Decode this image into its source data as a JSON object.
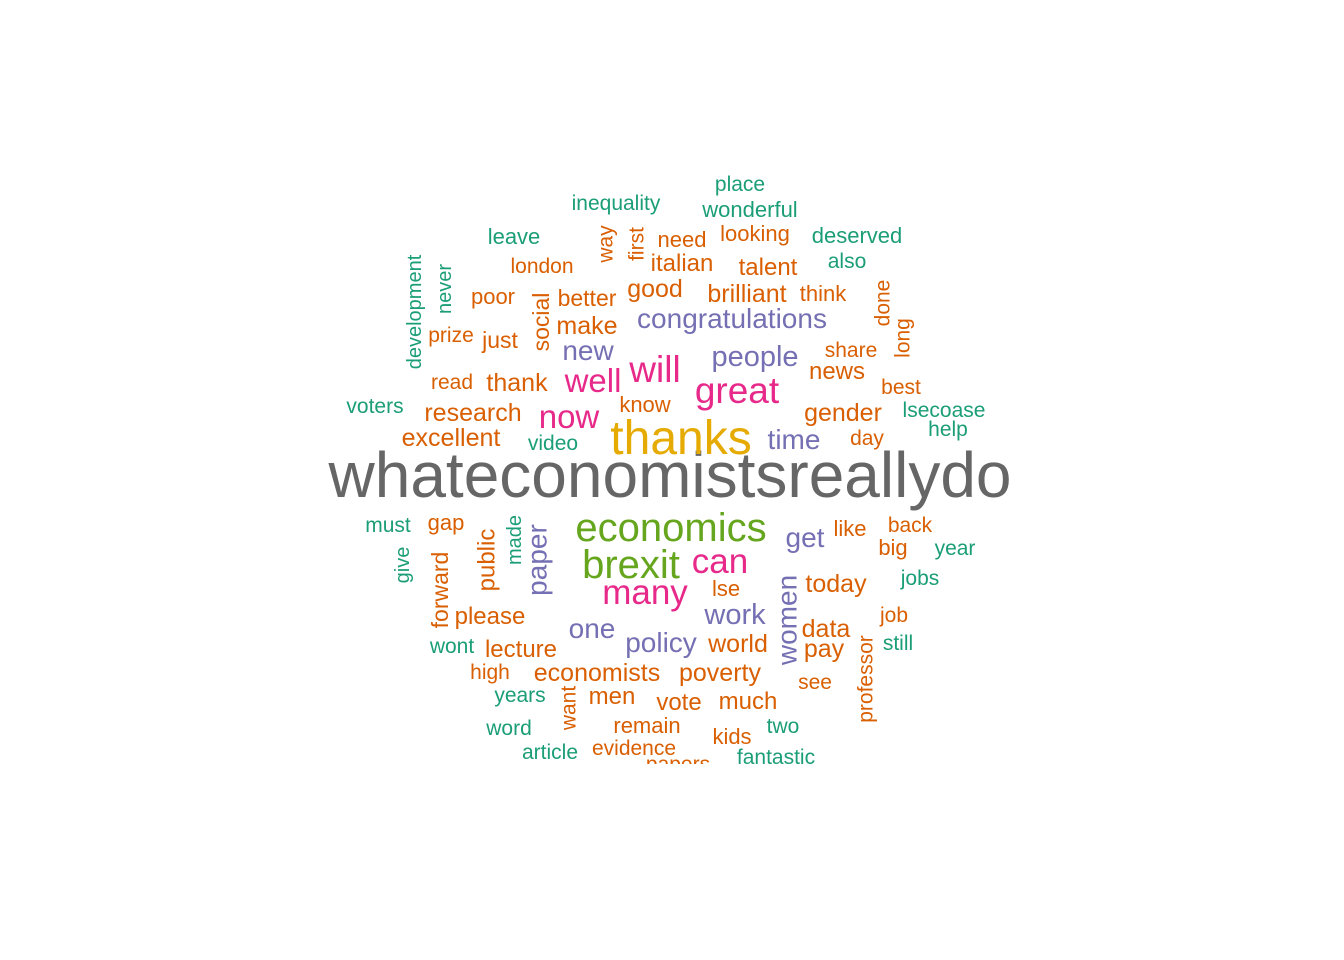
{
  "chart_data": {
    "type": "wordcloud",
    "palette": {
      "gray": "#666666",
      "mustard": "#E6AB02",
      "green": "#66A61E",
      "magenta": "#E7298A",
      "purple": "#7570B3",
      "orange": "#D95F02",
      "teal": "#1B9E77"
    },
    "words": [
      {
        "text": "whateconomistsreallydo",
        "rank": 1,
        "color": "gray"
      },
      {
        "text": "thanks",
        "rank": 2,
        "color": "mustard"
      },
      {
        "text": "economics",
        "rank": 3,
        "color": "green"
      },
      {
        "text": "brexit",
        "rank": 3,
        "color": "green"
      },
      {
        "text": "great",
        "rank": 4,
        "color": "magenta"
      },
      {
        "text": "will",
        "rank": 4,
        "color": "magenta"
      },
      {
        "text": "many",
        "rank": 4,
        "color": "magenta"
      },
      {
        "text": "can",
        "rank": 4,
        "color": "magenta"
      },
      {
        "text": "now",
        "rank": 4,
        "color": "magenta"
      },
      {
        "text": "well",
        "rank": 4,
        "color": "magenta"
      },
      {
        "text": "congratulations",
        "rank": 5,
        "color": "purple"
      },
      {
        "text": "people",
        "rank": 5,
        "color": "purple"
      },
      {
        "text": "new",
        "rank": 5,
        "color": "purple"
      },
      {
        "text": "time",
        "rank": 5,
        "color": "purple"
      },
      {
        "text": "get",
        "rank": 5,
        "color": "purple"
      },
      {
        "text": "paper",
        "rank": 5,
        "color": "purple"
      },
      {
        "text": "work",
        "rank": 5,
        "color": "purple"
      },
      {
        "text": "women",
        "rank": 5,
        "color": "purple"
      },
      {
        "text": "one",
        "rank": 5,
        "color": "purple"
      },
      {
        "text": "policy",
        "rank": 5,
        "color": "purple"
      },
      {
        "text": "gender",
        "rank": 6,
        "color": "orange"
      },
      {
        "text": "today",
        "rank": 6,
        "color": "orange"
      },
      {
        "text": "economists",
        "rank": 6,
        "color": "orange"
      },
      {
        "text": "thank",
        "rank": 6,
        "color": "orange"
      },
      {
        "text": "research",
        "rank": 6,
        "color": "orange"
      },
      {
        "text": "excellent",
        "rank": 6,
        "color": "orange"
      },
      {
        "text": "make",
        "rank": 6,
        "color": "orange"
      },
      {
        "text": "good",
        "rank": 6,
        "color": "orange"
      },
      {
        "text": "brilliant",
        "rank": 6,
        "color": "orange"
      },
      {
        "text": "better",
        "rank": 6,
        "color": "orange"
      },
      {
        "text": "social",
        "rank": 6,
        "color": "orange"
      },
      {
        "text": "italian",
        "rank": 6,
        "color": "orange"
      },
      {
        "text": "talent",
        "rank": 6,
        "color": "orange"
      },
      {
        "text": "news",
        "rank": 6,
        "color": "orange"
      },
      {
        "text": "world",
        "rank": 6,
        "color": "orange"
      },
      {
        "text": "poverty",
        "rank": 6,
        "color": "orange"
      },
      {
        "text": "data",
        "rank": 6,
        "color": "orange"
      },
      {
        "text": "pay",
        "rank": 6,
        "color": "orange"
      },
      {
        "text": "lecture",
        "rank": 6,
        "color": "orange"
      },
      {
        "text": "please",
        "rank": 6,
        "color": "orange"
      },
      {
        "text": "public",
        "rank": 6,
        "color": "orange"
      },
      {
        "text": "forward",
        "rank": 6,
        "color": "orange"
      },
      {
        "text": "much",
        "rank": 6,
        "color": "orange"
      },
      {
        "text": "vote",
        "rank": 6,
        "color": "orange"
      },
      {
        "text": "men",
        "rank": 6,
        "color": "orange"
      },
      {
        "text": "just",
        "rank": 6,
        "color": "orange"
      },
      {
        "text": "london",
        "rank": 7,
        "color": "orange"
      },
      {
        "text": "poor",
        "rank": 7,
        "color": "orange"
      },
      {
        "text": "need",
        "rank": 7,
        "color": "orange"
      },
      {
        "text": "looking",
        "rank": 7,
        "color": "orange"
      },
      {
        "text": "way",
        "rank": 7,
        "color": "orange"
      },
      {
        "text": "first",
        "rank": 7,
        "color": "orange"
      },
      {
        "text": "think",
        "rank": 7,
        "color": "orange"
      },
      {
        "text": "done",
        "rank": 7,
        "color": "orange"
      },
      {
        "text": "long",
        "rank": 7,
        "color": "orange"
      },
      {
        "text": "share",
        "rank": 7,
        "color": "orange"
      },
      {
        "text": "best",
        "rank": 7,
        "color": "orange"
      },
      {
        "text": "prize",
        "rank": 7,
        "color": "orange"
      },
      {
        "text": "read",
        "rank": 7,
        "color": "orange"
      },
      {
        "text": "know",
        "rank": 7,
        "color": "orange"
      },
      {
        "text": "day",
        "rank": 7,
        "color": "orange"
      },
      {
        "text": "gap",
        "rank": 7,
        "color": "orange"
      },
      {
        "text": "like",
        "rank": 7,
        "color": "orange"
      },
      {
        "text": "back",
        "rank": 7,
        "color": "orange"
      },
      {
        "text": "big",
        "rank": 7,
        "color": "orange"
      },
      {
        "text": "lse",
        "rank": 7,
        "color": "orange"
      },
      {
        "text": "job",
        "rank": 7,
        "color": "orange"
      },
      {
        "text": "professor",
        "rank": 7,
        "color": "orange"
      },
      {
        "text": "see",
        "rank": 7,
        "color": "orange"
      },
      {
        "text": "high",
        "rank": 7,
        "color": "orange"
      },
      {
        "text": "want",
        "rank": 7,
        "color": "orange"
      },
      {
        "text": "remain",
        "rank": 7,
        "color": "orange"
      },
      {
        "text": "evidence",
        "rank": 7,
        "color": "orange"
      },
      {
        "text": "kids",
        "rank": 7,
        "color": "orange"
      },
      {
        "text": "papers",
        "rank": 7,
        "color": "orange"
      },
      {
        "text": "inequality",
        "rank": 7,
        "color": "teal"
      },
      {
        "text": "place",
        "rank": 7,
        "color": "teal"
      },
      {
        "text": "wonderful",
        "rank": 7,
        "color": "teal"
      },
      {
        "text": "leave",
        "rank": 7,
        "color": "teal"
      },
      {
        "text": "deserved",
        "rank": 7,
        "color": "teal"
      },
      {
        "text": "also",
        "rank": 7,
        "color": "teal"
      },
      {
        "text": "development",
        "rank": 7,
        "color": "teal"
      },
      {
        "text": "never",
        "rank": 7,
        "color": "teal"
      },
      {
        "text": "voters",
        "rank": 7,
        "color": "teal"
      },
      {
        "text": "lsecoase",
        "rank": 7,
        "color": "teal"
      },
      {
        "text": "help",
        "rank": 7,
        "color": "teal"
      },
      {
        "text": "video",
        "rank": 7,
        "color": "teal"
      },
      {
        "text": "must",
        "rank": 7,
        "color": "teal"
      },
      {
        "text": "made",
        "rank": 7,
        "color": "teal"
      },
      {
        "text": "give",
        "rank": 7,
        "color": "teal"
      },
      {
        "text": "year",
        "rank": 7,
        "color": "teal"
      },
      {
        "text": "jobs",
        "rank": 7,
        "color": "teal"
      },
      {
        "text": "still",
        "rank": 7,
        "color": "teal"
      },
      {
        "text": "wont",
        "rank": 7,
        "color": "teal"
      },
      {
        "text": "years",
        "rank": 7,
        "color": "teal"
      },
      {
        "text": "word",
        "rank": 7,
        "color": "teal"
      },
      {
        "text": "article",
        "rank": 7,
        "color": "teal"
      },
      {
        "text": "two",
        "rank": 7,
        "color": "teal"
      },
      {
        "text": "fantastic",
        "rank": 7,
        "color": "teal"
      }
    ]
  }
}
